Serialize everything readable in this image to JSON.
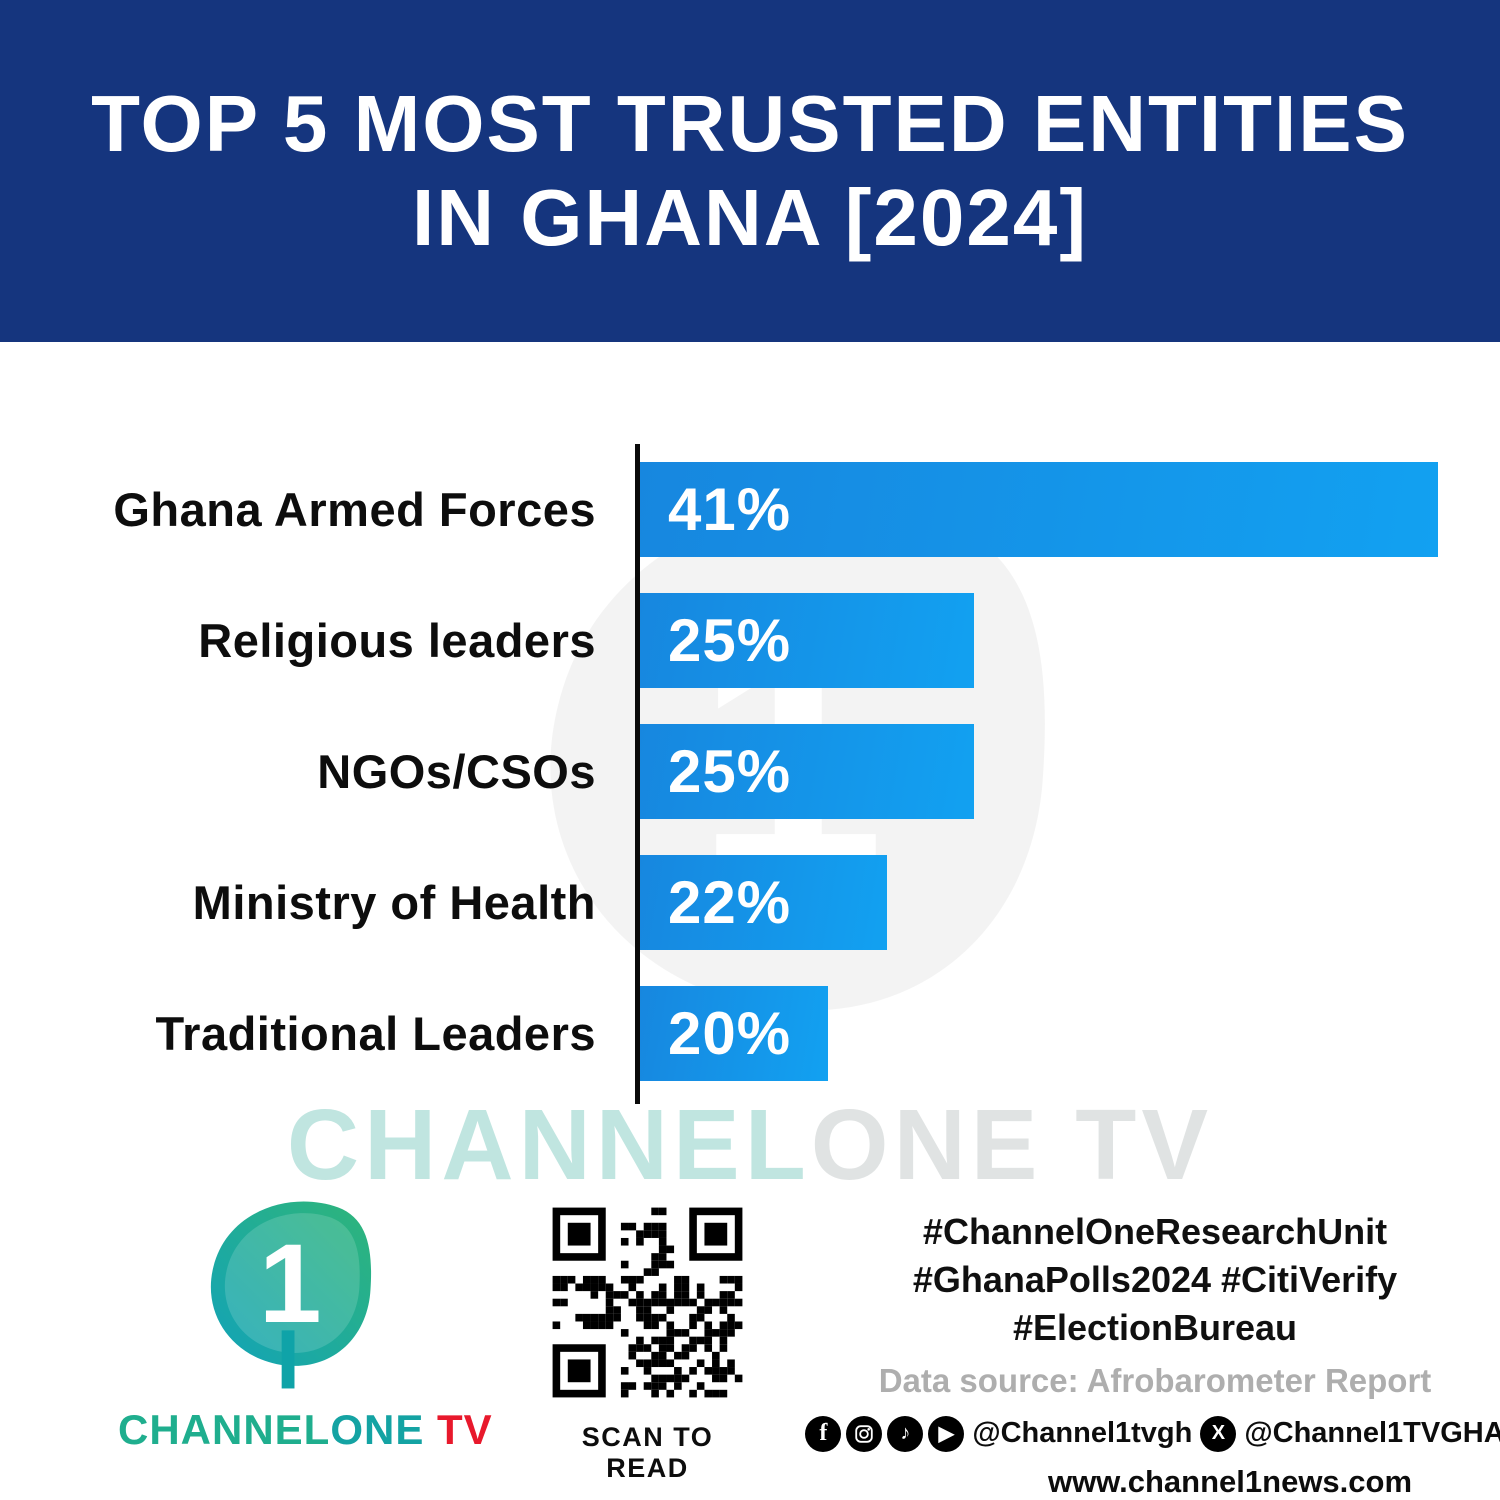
{
  "header": {
    "title_line1": "TOP 5 MOST TRUSTED ENTITIES",
    "title_line2": "IN GHANA [2024]"
  },
  "chart_data": {
    "type": "bar",
    "orientation": "horizontal",
    "title": "TOP 5 MOST TRUSTED ENTITIES IN GHANA [2024]",
    "categories": [
      "Ghana Armed Forces",
      "Religious leaders",
      "NGOs/CSOs",
      "Ministry of Health",
      "Traditional Leaders"
    ],
    "values": [
      41,
      25,
      25,
      22,
      20
    ],
    "value_labels": [
      "41%",
      "25%",
      "25%",
      "22%",
      "20%"
    ],
    "xlim": [
      13.5,
      41
    ],
    "grid": "off",
    "legend": "none",
    "bar_color_start": "#1787df",
    "bar_color_end": "#12a1f1"
  },
  "watermark": {
    "part1": "CHANNEL",
    "part2": "ONE TV"
  },
  "footer": {
    "brand": {
      "part1": "CHANNEL",
      "part2": "ONE",
      "part3": " TV"
    },
    "qr_caption": "SCAN TO READ",
    "hashtags": {
      "line1": "#ChannelOneResearchUnit",
      "line2": "#GhanaPolls2024 #CitiVerify",
      "line3": "#ElectionBureau"
    },
    "data_source": "Data source: Afrobarometer Report",
    "social": {
      "handle1": "@Channel1tvgh",
      "handle2": "@Channel1TVGHA"
    },
    "website": "www.channel1news.com"
  },
  "colors": {
    "header_bg": "#15357e",
    "axis": "#0a0a0a",
    "brand_teal": "#1fae8e",
    "brand_red": "#e8192c",
    "source_gray": "#aeaeae"
  }
}
